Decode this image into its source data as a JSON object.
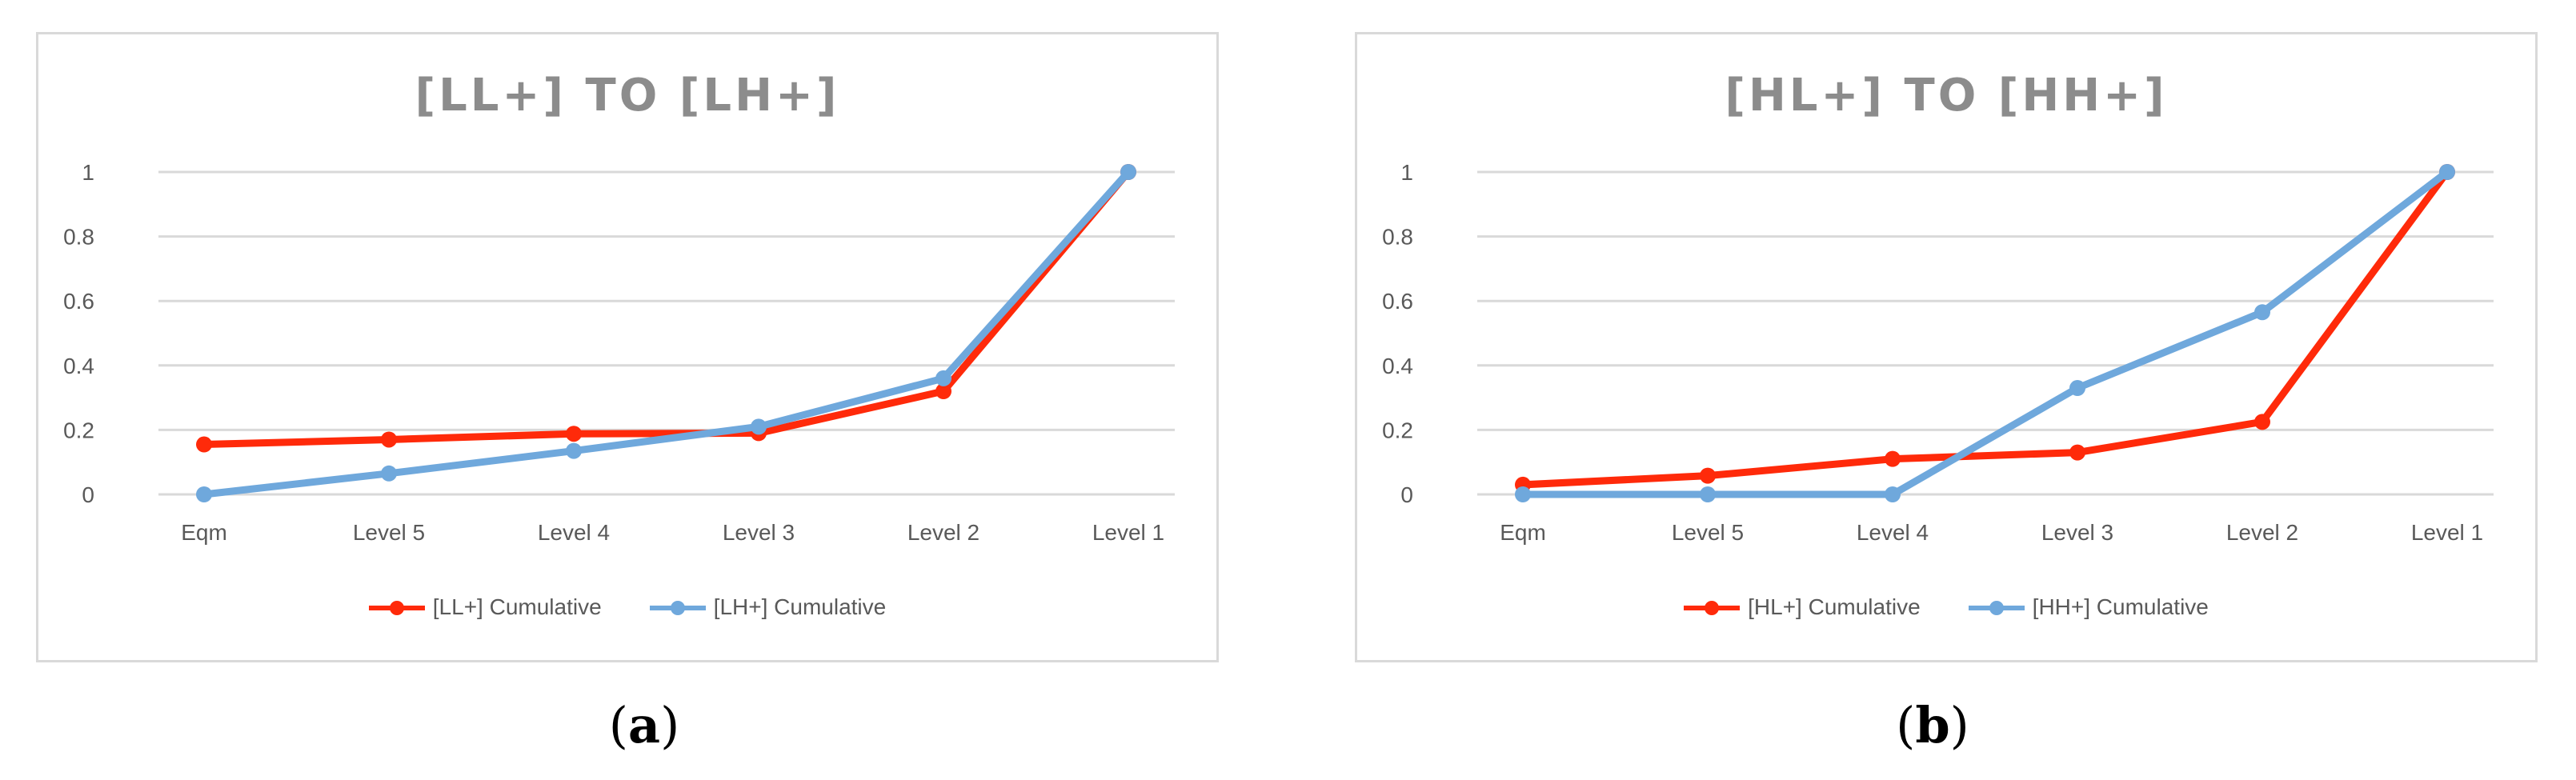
{
  "chart_data": [
    {
      "type": "line",
      "title": "[LL+] TO [LH+]",
      "caption_label": "a",
      "categories": [
        "Eqm",
        "Level 5",
        "Level 4",
        "Level 3",
        "Level 2",
        "Level 1"
      ],
      "ylim": [
        0,
        1
      ],
      "yticks": [
        "0",
        "0.2",
        "0.4",
        "0.6",
        "0.8",
        "1"
      ],
      "grid": true,
      "legend_position": "bottom",
      "series": [
        {
          "name": "[LL+] Cumulative",
          "color": "#ff2a0a",
          "values": [
            0.155,
            0.17,
            0.188,
            0.19,
            0.32,
            1.0
          ]
        },
        {
          "name": "[LH+] Cumulative",
          "color": "#6fa8dc",
          "values": [
            0.0,
            0.065,
            0.135,
            0.21,
            0.36,
            1.0
          ]
        }
      ]
    },
    {
      "type": "line",
      "title": "[HL+] TO [HH+]",
      "caption_label": "b",
      "categories": [
        "Eqm",
        "Level 5",
        "Level 4",
        "Level 3",
        "Level 2",
        "Level 1"
      ],
      "ylim": [
        0,
        1
      ],
      "yticks": [
        "0",
        "0.2",
        "0.4",
        "0.6",
        "0.8",
        "1"
      ],
      "grid": true,
      "legend_position": "bottom",
      "series": [
        {
          "name": "[HL+] Cumulative",
          "color": "#ff2a0a",
          "values": [
            0.03,
            0.058,
            0.11,
            0.13,
            0.225,
            1.0
          ]
        },
        {
          "name": "[HH+] Cumulative",
          "color": "#6fa8dc",
          "values": [
            0.0,
            0.0,
            0.0,
            0.33,
            0.565,
            1.0
          ]
        }
      ]
    }
  ]
}
